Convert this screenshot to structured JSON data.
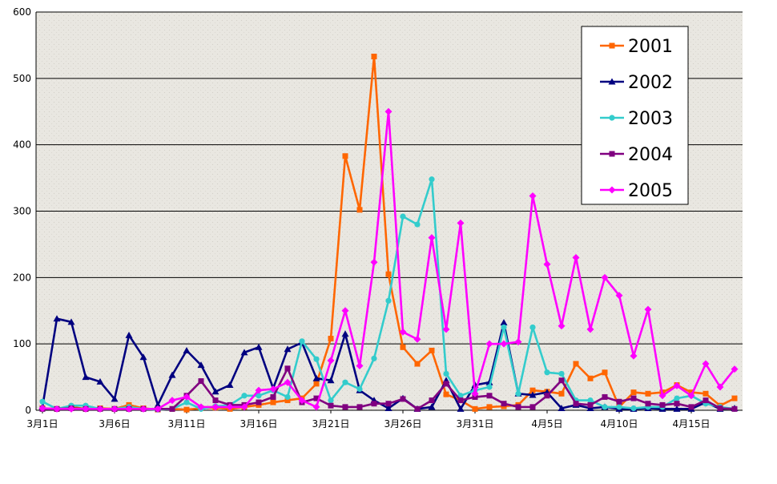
{
  "chart_data": {
    "type": "line",
    "ylim": [
      0,
      600
    ],
    "y_ticks": [
      "0",
      "100",
      "200",
      "300",
      "400",
      "500",
      "600"
    ],
    "x_tick_labels": [
      "3月1日",
      "3月6日",
      "3月11日",
      "3月16日",
      "3月21日",
      "3月26日",
      "3月31日",
      "4月5日",
      "4月10日",
      "4月15日"
    ],
    "x_tick_every": 5,
    "grid": true,
    "legend_position": "top-right",
    "colors": {
      "plot_background": "#e9e7e1",
      "2001": "#ff6600",
      "2002": "#000080",
      "2003": "#33cccc",
      "2004": "#800080",
      "2005": "#ff00ff"
    },
    "series": [
      {
        "name": "2001",
        "marker": "square",
        "color": "#ff6600",
        "values": [
          3,
          2,
          5,
          2,
          3,
          2,
          8,
          3,
          1,
          2,
          1,
          3,
          4,
          2,
          5,
          8,
          12,
          15,
          18,
          40,
          108,
          383,
          302,
          533,
          205,
          95,
          70,
          90,
          24,
          15,
          2,
          5,
          6,
          8,
          30,
          28,
          25,
          70,
          48,
          57,
          5,
          27,
          25,
          27,
          38,
          27,
          25,
          7,
          18
        ]
      },
      {
        "name": "2002",
        "marker": "triangle",
        "color": "#000080",
        "values": [
          5,
          138,
          133,
          50,
          43,
          17,
          113,
          80,
          8,
          53,
          90,
          68,
          28,
          38,
          87,
          95,
          33,
          92,
          102,
          48,
          45,
          115,
          30,
          15,
          3,
          18,
          2,
          5,
          45,
          2,
          38,
          42,
          132,
          25,
          23,
          27,
          3,
          8,
          3,
          5,
          2,
          2,
          3,
          2,
          2,
          2,
          12,
          2,
          3
        ]
      },
      {
        "name": "2003",
        "marker": "circle",
        "color": "#33cccc",
        "values": [
          13,
          2,
          7,
          7,
          2,
          2,
          5,
          2,
          1,
          2,
          12,
          2,
          6,
          8,
          22,
          22,
          30,
          20,
          104,
          77,
          15,
          42,
          32,
          78,
          165,
          292,
          280,
          348,
          55,
          22,
          30,
          35,
          125,
          25,
          125,
          57,
          55,
          15,
          15,
          5,
          5,
          3,
          5,
          5,
          18,
          22,
          10,
          5,
          2
        ]
      },
      {
        "name": "2004",
        "marker": "square",
        "color": "#800080",
        "values": [
          2,
          2,
          3,
          2,
          2,
          2,
          2,
          2,
          2,
          2,
          22,
          44,
          15,
          8,
          8,
          12,
          20,
          63,
          12,
          18,
          7,
          5,
          5,
          10,
          10,
          17,
          2,
          15,
          40,
          15,
          20,
          22,
          10,
          5,
          5,
          22,
          45,
          10,
          8,
          20,
          13,
          18,
          10,
          8,
          10,
          5,
          15,
          3,
          2
        ]
      },
      {
        "name": "2005",
        "marker": "diamond",
        "color": "#ff00ff",
        "values": [
          3,
          2,
          2,
          2,
          2,
          2,
          2,
          2,
          2,
          15,
          20,
          5,
          5,
          5,
          5,
          30,
          32,
          42,
          15,
          5,
          75,
          150,
          67,
          223,
          450,
          118,
          107,
          260,
          122,
          282,
          25,
          100,
          100,
          103,
          323,
          220,
          127,
          230,
          122,
          200,
          173,
          82,
          152,
          22,
          37,
          22,
          70,
          35,
          62
        ]
      }
    ]
  }
}
